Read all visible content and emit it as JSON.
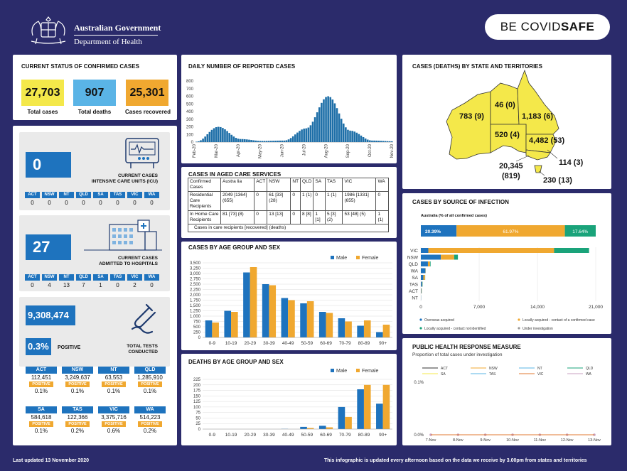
{
  "header": {
    "gov_line1": "Australian Government",
    "gov_line2": "Department of Health",
    "covidsafe_a": "BE COVID",
    "covidsafe_b": "SAFE"
  },
  "confirmed": {
    "title": "CURRENT STATUS OF CONFIRMED CASES",
    "items": [
      {
        "value": "27,703",
        "label": "Total cases",
        "color": "#f4e84a"
      },
      {
        "value": "907",
        "label": "Total deaths",
        "color": "#5ab4e6"
      },
      {
        "value": "25,301",
        "label": "Cases recovered",
        "color": "#f0a830"
      }
    ]
  },
  "icu": {
    "value": "0",
    "label1": "CURRENT CASES",
    "label2": "INTENSIVE CARE UNITS (ICU)",
    "states": [
      "ACT",
      "NSW",
      "NT",
      "QLD",
      "SA",
      "TAS",
      "VIC",
      "WA"
    ],
    "values": [
      "0",
      "0",
      "0",
      "0",
      "0",
      "0",
      "0",
      "0"
    ]
  },
  "hospital": {
    "value": "27",
    "label1": "CURRENT CASES",
    "label2": "ADMITTED TO HOSPITALS",
    "states": [
      "ACT",
      "NSW",
      "NT",
      "QLD",
      "SA",
      "TAS",
      "VIC",
      "WA"
    ],
    "values": [
      "0",
      "4",
      "13",
      "7",
      "1",
      "0",
      "2",
      "0"
    ]
  },
  "tests": {
    "value": "9,308,474",
    "positive_pct": "0.3%",
    "positive_label": "POSITIVE",
    "label1": "TOTAL TESTS",
    "label2": "CONDUCTED",
    "positive_tag": "POSITIVE",
    "states": [
      {
        "name": "ACT",
        "tests": "112,451",
        "pct": "0.1%"
      },
      {
        "name": "NSW",
        "tests": "3,249,637",
        "pct": "0.1%"
      },
      {
        "name": "NT",
        "tests": "63,553",
        "pct": "0.1%"
      },
      {
        "name": "QLD",
        "tests": "1,285,910",
        "pct": "0.1%"
      },
      {
        "name": "SA",
        "tests": "584,618",
        "pct": "0.1%"
      },
      {
        "name": "TAS",
        "tests": "122,366",
        "pct": "0.2%"
      },
      {
        "name": "VIC",
        "tests": "3,375,716",
        "pct": "0.6%"
      },
      {
        "name": "WA",
        "tests": "514,223",
        "pct": "0.2%"
      }
    ]
  },
  "daily": {
    "title": "DAILY NUMBER OF REPORTED CASES",
    "months": [
      "Feb-20",
      "Mar-20",
      "Apr-20",
      "May-20",
      "Jun-20",
      "Jul-20",
      "Aug-20",
      "Sep-20",
      "Oct-20",
      "Nov-20"
    ]
  },
  "aged": {
    "title": "CASES IN AGED CARE SERVICES",
    "header": [
      "Confirmed Cases",
      "Austra lia",
      "ACT",
      "NSW",
      "NT",
      "QLD",
      "SA",
      "TAS",
      "VIC",
      "WA"
    ],
    "rows": [
      [
        "Residential Care Recipients",
        "2049 [1364] (655)",
        "0",
        "61 [33] (28)",
        "0",
        "1 (1)",
        "0",
        "1 (1)",
        "1986 [1331] (655)",
        "0"
      ],
      [
        "In Home Care Recipients",
        "81 [73] (8)",
        "0",
        "13 [13]",
        "0",
        "8 [8]",
        "1 [1]",
        "5 [3] (2)",
        "53 [48] (5)",
        "1 (1)"
      ]
    ],
    "note": "Cases in care recipients [recovered] (deaths)"
  },
  "state_map": {
    "title": "CASES (DEATHS) BY STATE AND TERRITORIES",
    "labels": {
      "WA": "783 (9)",
      "NT": "46 (0)",
      "QLD": "1,183 (6)",
      "SA": "520 (4)",
      "NSW": "4,482 (53)",
      "ACT": "114 (3)",
      "VIC1": "20,345",
      "VIC2": "(819)",
      "TAS": "230 (13)"
    }
  },
  "source": {
    "title": "CASES BY SOURCE OF INFECTION",
    "subtitle": "Australia (% of all confirmed cases)"
  },
  "public_health": {
    "title": "PUBLIC HEALTH RESPONSE MEASURE",
    "subtitle": "Proportion of total cases under investigation"
  },
  "footer": {
    "left": "Last updated 13 November 2020",
    "right": "This infographic is updated every afternoon based on the data we receive by 3.00pm from states and territories"
  },
  "chart_data": [
    {
      "type": "area",
      "title": "DAILY NUMBER OF REPORTED CASES",
      "ylim": [
        0,
        800
      ],
      "yticks": [
        "0",
        "100",
        "200",
        "300",
        "400",
        "500",
        "600",
        "700",
        "800"
      ],
      "x": [
        "Feb-20",
        "Mar-20",
        "Apr-20",
        "May-20",
        "Jun-20",
        "Jul-20",
        "Aug-20",
        "Sep-20",
        "Oct-20",
        "Nov-20"
      ],
      "values": [
        5,
        200,
        40,
        15,
        20,
        180,
        600,
        150,
        20,
        10
      ],
      "color": "#1e6fa8"
    },
    {
      "type": "bar",
      "title": "CASES BY AGE GROUP AND SEX",
      "categories": [
        "0-9",
        "10-19",
        "20-29",
        "30-39",
        "40-49",
        "50-59",
        "60-69",
        "70-79",
        "80-89",
        "90+"
      ],
      "ylim": [
        0,
        3500
      ],
      "yticks": [
        "0",
        "250",
        "500",
        "750",
        "1,000",
        "1,250",
        "1,500",
        "1,750",
        "2,000",
        "2,250",
        "2,500",
        "2,750",
        "3,000",
        "3,250",
        "3,500"
      ],
      "series": [
        {
          "name": "Male",
          "color": "#1e73be",
          "values": [
            800,
            1250,
            3050,
            2500,
            1850,
            1600,
            1200,
            900,
            550,
            250
          ]
        },
        {
          "name": "Female",
          "color": "#f0a830",
          "values": [
            700,
            1200,
            3300,
            2450,
            1750,
            1700,
            1150,
            750,
            800,
            600
          ]
        }
      ]
    },
    {
      "type": "bar",
      "title": "DEATHS BY AGE GROUP AND SEX",
      "categories": [
        "0-9",
        "10-19",
        "20-29",
        "30-39",
        "40-49",
        "50-59",
        "60-69",
        "70-79",
        "80-89",
        "90+"
      ],
      "ylim": [
        0,
        225
      ],
      "yticks": [
        "0",
        "25",
        "50",
        "75",
        "100",
        "125",
        "150",
        "175",
        "200",
        "225"
      ],
      "series": [
        {
          "name": "Male",
          "color": "#1e73be",
          "values": [
            0,
            0,
            0,
            0,
            1,
            10,
            15,
            100,
            180,
            115
          ]
        },
        {
          "name": "Female",
          "color": "#f0a830",
          "values": [
            0,
            0,
            0,
            0,
            0,
            5,
            8,
            55,
            200,
            200
          ]
        }
      ]
    },
    {
      "type": "bar",
      "title": "CASES BY SOURCE OF INFECTION",
      "categories": [
        "VIC",
        "NSW",
        "QLD",
        "WA",
        "SA",
        "TAS",
        "ACT",
        "NT"
      ],
      "xlim": [
        0,
        21000
      ],
      "xticks": [
        "0",
        "7,000",
        "14,000",
        "21,000"
      ],
      "summary": [
        {
          "name": "Overseas acquired",
          "pct": "20.39%",
          "value": 20.39,
          "color": "#1e73be"
        },
        {
          "name": "Locally acquired - contact of a confirmed case",
          "pct": "61.97%",
          "value": 61.97,
          "color": "#f0a830"
        },
        {
          "name": "Locally acquired - contact not identified",
          "pct": "17.64%",
          "value": 17.64,
          "color": "#1aa37a"
        }
      ],
      "legend": [
        "Overseas acquired",
        "Locally acquired - contact of a confirmed case",
        "Locally acquired - contact not identified",
        "Under investigation"
      ],
      "series": [
        {
          "name": "Overseas acquired",
          "color": "#1e73be",
          "values": [
            900,
            2400,
            850,
            550,
            300,
            150,
            60,
            20
          ]
        },
        {
          "name": "Locally acquired - contact of a confirmed case",
          "color": "#f0a830",
          "values": [
            15100,
            1600,
            250,
            25,
            200,
            40,
            45,
            5
          ]
        },
        {
          "name": "Locally acquired - contact not identified",
          "color": "#1aa37a",
          "values": [
            4200,
            450,
            70,
            5,
            20,
            30,
            10,
            1
          ]
        },
        {
          "name": "Under investigation",
          "color": "#999999",
          "values": [
            0,
            0,
            0,
            0,
            0,
            0,
            0,
            0
          ]
        }
      ]
    },
    {
      "type": "line",
      "title": "PUBLIC HEALTH RESPONSE MEASURE",
      "x": [
        "7-Nov",
        "8-Nov",
        "9-Nov",
        "10-Nov",
        "11-Nov",
        "12-Nov",
        "13-Nov"
      ],
      "yticks": [
        "0.0%",
        "0.1%"
      ],
      "legend": [
        {
          "name": "ACT",
          "color": "#333333"
        },
        {
          "name": "NSW",
          "color": "#f0a830"
        },
        {
          "name": "NT",
          "color": "#5ab4e6"
        },
        {
          "name": "QLD",
          "color": "#1aa37a"
        },
        {
          "name": "SA",
          "color": "#f4e84a"
        },
        {
          "name": "TAS",
          "color": "#5ab4e6"
        },
        {
          "name": "VIC",
          "color": "#e07a30"
        },
        {
          "name": "WA",
          "color": "#c9a0c0"
        }
      ],
      "values": [
        0,
        0,
        0,
        0,
        0,
        0,
        0
      ]
    }
  ]
}
